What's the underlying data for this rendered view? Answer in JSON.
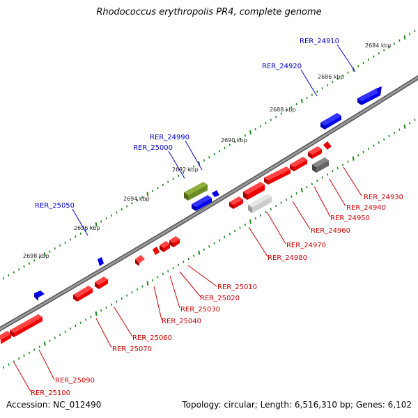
{
  "title": "Rhodococcus erythropolis PR4, complete genome",
  "footer": {
    "accession": "Accession: NC_012490",
    "summary": "Topology: circular; Length: 6,516,310 bp; Genes: 6,102"
  },
  "colors": {
    "forward_label": "#0000cc",
    "reverse_label": "#cc0000",
    "backbone": "#808080",
    "tick": "#1a8a1a"
  },
  "scale_labels": [
    "2684 kbp",
    "2686 kbp",
    "2688 kbp",
    "2690 kbp",
    "2692 kbp",
    "2694 kbp",
    "2696 kbp",
    "2698 kbp"
  ],
  "forward_genes": [
    {
      "label": "RER_24910",
      "color": "#0000ee"
    },
    {
      "label": "RER_24920",
      "color": "#0000ee"
    },
    {
      "label": "RER_24990",
      "color": "#0000ee"
    },
    {
      "label": "RER_25000",
      "color": "#6b8e23"
    },
    {
      "label": "RER_25050",
      "color": "#0000ee"
    }
  ],
  "reverse_genes": [
    {
      "label": "RER_24930",
      "color": "#ee0000"
    },
    {
      "label": "RER_24940",
      "color": "#ee0000"
    },
    {
      "label": "RER_24950",
      "color": "#666666"
    },
    {
      "label": "RER_24960",
      "color": "#ee0000"
    },
    {
      "label": "RER_24970",
      "color": "#ee0000"
    },
    {
      "label": "RER_24980",
      "color": "#cccccc"
    },
    {
      "label": "RER_25010",
      "color": "#ee0000"
    },
    {
      "label": "RER_25020",
      "color": "#ee0000"
    },
    {
      "label": "RER_25030",
      "color": "#ee0000"
    },
    {
      "label": "RER_25040",
      "color": "#ee0000"
    },
    {
      "label": "RER_25060",
      "color": "#ee0000"
    },
    {
      "label": "RER_25070",
      "color": "#ee0000"
    },
    {
      "label": "RER_25090",
      "color": "#ee0000"
    },
    {
      "label": "RER_25100",
      "color": "#ee0000"
    }
  ]
}
